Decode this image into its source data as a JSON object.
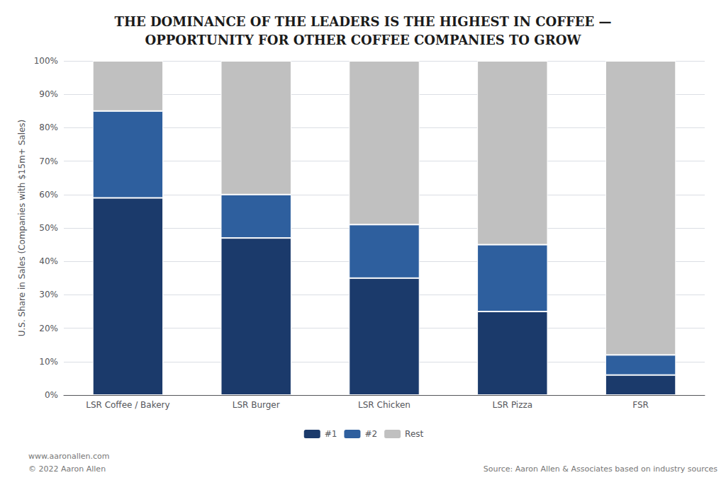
{
  "chart_data": {
    "type": "bar",
    "title": "THE DOMINANCE OF THE LEADERS IS THE HIGHEST IN COFFEE —\nOPPORTUNITY FOR OTHER COFFEE COMPANIES TO GROW",
    "categories": [
      "LSR Coffee / Bakery",
      "LSR Burger",
      "LSR Chicken",
      "LSR Pizza",
      "FSR"
    ],
    "series": [
      {
        "name": "#1",
        "color": "#1b3a6b",
        "values": [
          59,
          47,
          35,
          25,
          6
        ]
      },
      {
        "name": "#2",
        "color": "#2e5f9e",
        "values": [
          26,
          13,
          16,
          20,
          6
        ]
      },
      {
        "name": "Rest",
        "color": "#c0c0c0",
        "values": [
          15,
          40,
          49,
          55,
          88
        ]
      }
    ],
    "ylabel": "U.S. Share in Sales (Companies with $15m+ Sales)",
    "ylim": [
      0,
      100
    ],
    "yticks": [
      {
        "value": 0,
        "label": "0%"
      },
      {
        "value": 10,
        "label": "10%"
      },
      {
        "value": 20,
        "label": "20%"
      },
      {
        "value": 30,
        "label": "30%"
      },
      {
        "value": 40,
        "label": "40%"
      },
      {
        "value": 50,
        "label": "50%"
      },
      {
        "value": 60,
        "label": "60%"
      },
      {
        "value": 70,
        "label": "70%"
      },
      {
        "value": 80,
        "label": "80%"
      },
      {
        "value": 90,
        "label": "90%"
      },
      {
        "value": 100,
        "label": "100%"
      }
    ],
    "stacked": true,
    "grid": true,
    "legend": "bottom",
    "annotations": [
      "www.aaronallen.com",
      "© 2022 Aaron Allen",
      "Source: Aaron Allen & Associates based on industry sources"
    ]
  }
}
